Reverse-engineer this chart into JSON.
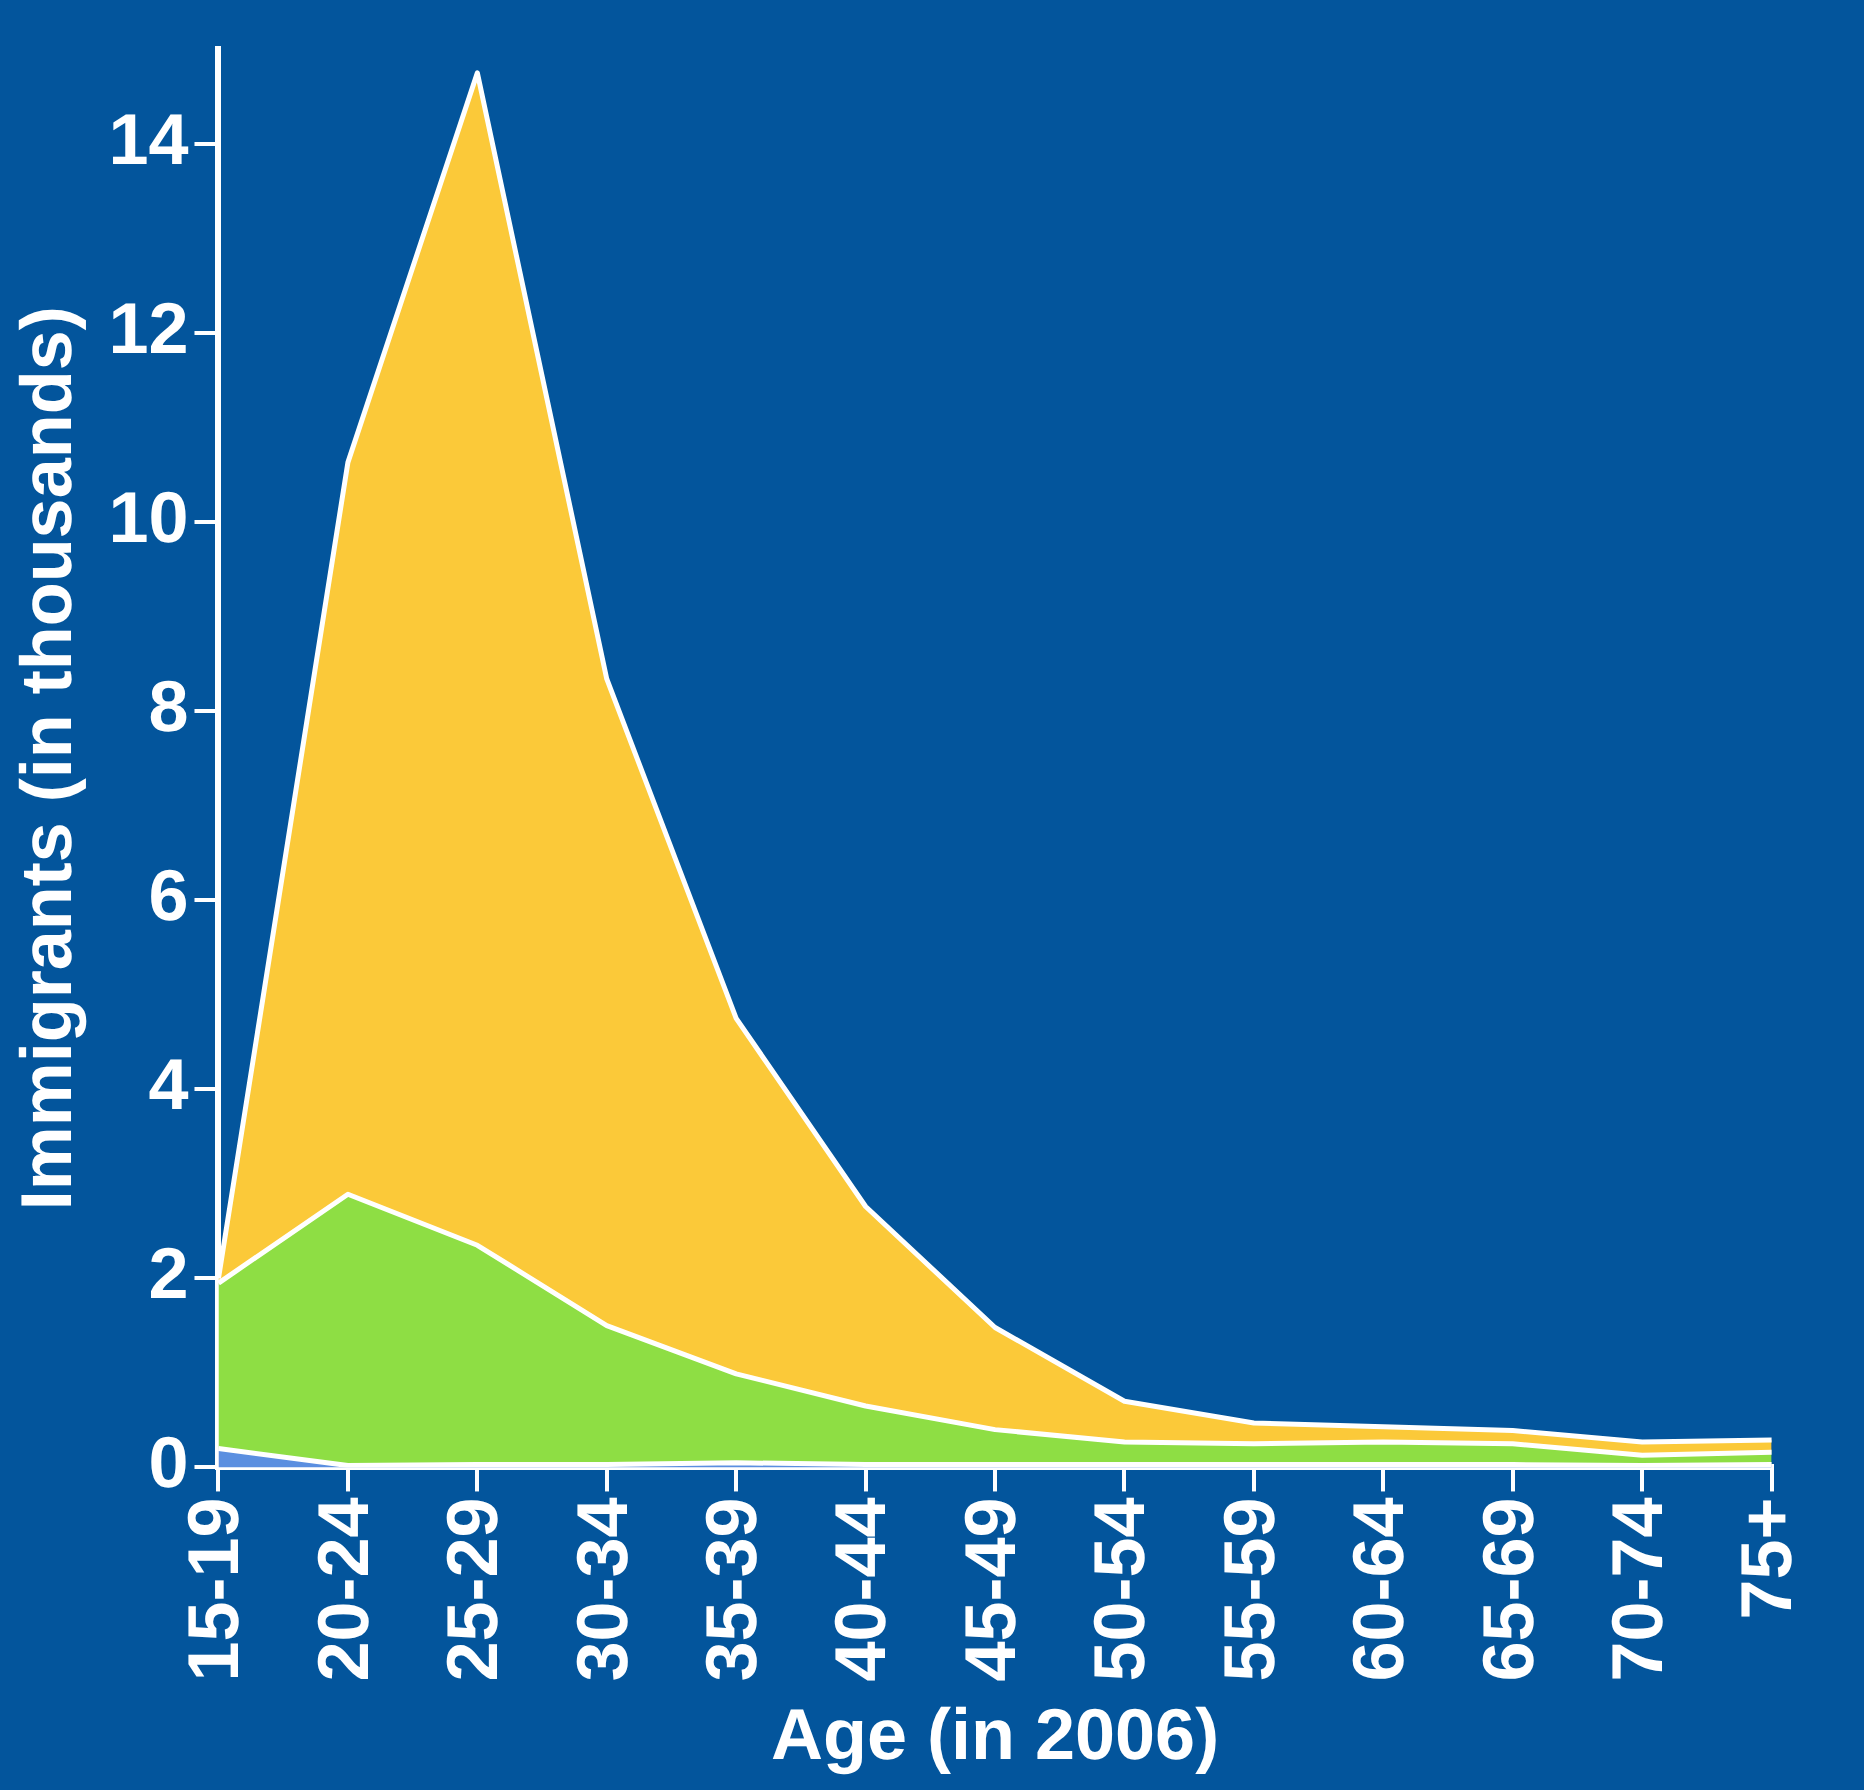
{
  "chart_data": {
    "type": "area",
    "stacked": true,
    "xlabel": "Age (in 2006)",
    "ylabel": "Immigrants (in thousands)",
    "categories": [
      "15-19",
      "20-24",
      "25-29",
      "30-34",
      "35-39",
      "40-44",
      "45-49",
      "50-54",
      "55-59",
      "60-64",
      "65-69",
      "70-74",
      "75+"
    ],
    "series": [
      {
        "color": "#5b8fe0",
        "values": [
          0.2,
          0.02,
          0.03,
          0.03,
          0.05,
          0.03,
          0.03,
          0.03,
          0.03,
          0.03,
          0.03,
          0.02,
          0.03
        ]
      },
      {
        "color": "#8ede44",
        "values": [
          1.75,
          2.87,
          2.32,
          1.47,
          0.94,
          0.62,
          0.37,
          0.24,
          0.22,
          0.24,
          0.22,
          0.11,
          0.13
        ]
      },
      {
        "color": "#fbc939",
        "values": [
          0.05,
          7.74,
          12.4,
          6.84,
          3.76,
          2.11,
          1.08,
          0.43,
          0.22,
          0.16,
          0.14,
          0.14,
          0.13
        ]
      }
    ],
    "ylim": [
      0,
      15
    ],
    "yticks": [
      0,
      2,
      4,
      6,
      8,
      10,
      12,
      14
    ],
    "grid": false,
    "legend": false
  }
}
